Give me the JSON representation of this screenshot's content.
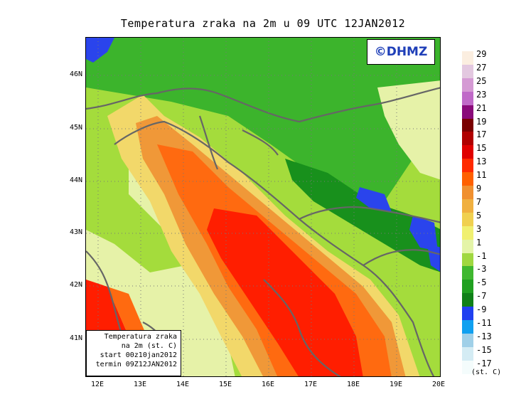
{
  "title": "Temperatura zraka na 2m u 09 UTC 12JAN2012",
  "brand": "©DHMZ",
  "info": {
    "line1": "Temperatura zraka",
    "line2": "na 2m (st. C)",
    "line3": "start 00z10jan2012",
    "line4": "termin 09Z12JAN2012"
  },
  "lat_labels": [
    "46N",
    "45N",
    "44N",
    "43N",
    "42N",
    "41N"
  ],
  "lon_labels": [
    "12E",
    "13E",
    "14E",
    "15E",
    "16E",
    "17E",
    "18E",
    "19E",
    "20E"
  ],
  "legend": {
    "unit": "(st. C)",
    "labels": [
      "29",
      "27",
      "25",
      "23",
      "21",
      "19",
      "17",
      "15",
      "13",
      "11",
      "9",
      "7",
      "5",
      "3",
      "1",
      "-1",
      "-3",
      "-5",
      "-7",
      "-9",
      "-11",
      "-13",
      "-15",
      "-17"
    ],
    "colors": [
      "#fbeee0",
      "#e3c8e0",
      "#d59ad4",
      "#c06ac8",
      "#8a0a7a",
      "#7a0000",
      "#b00000",
      "#e00000",
      "#ff2a00",
      "#ff6000",
      "#f09030",
      "#f0b040",
      "#f0d050",
      "#f0f070",
      "#e4f4a8",
      "#a0d840",
      "#40b830",
      "#20a020",
      "#108018",
      "#2040f0",
      "#10a0f0",
      "#a0d0e8",
      "#d4ecf4",
      "#f4fcfc"
    ]
  },
  "map": {
    "colors": {
      "sea_hot": "#ff1e00",
      "sea_warm": "#ff6a10",
      "sea_mild": "#f09838",
      "coast_yellow": "#f2d86a",
      "lowland": "#e6f2a8",
      "green_light": "#a4dc3c",
      "green_mid": "#3cb42c",
      "green_dark": "#18901c",
      "cold_blue": "#2a44ec",
      "border_grey": "#666666"
    }
  }
}
